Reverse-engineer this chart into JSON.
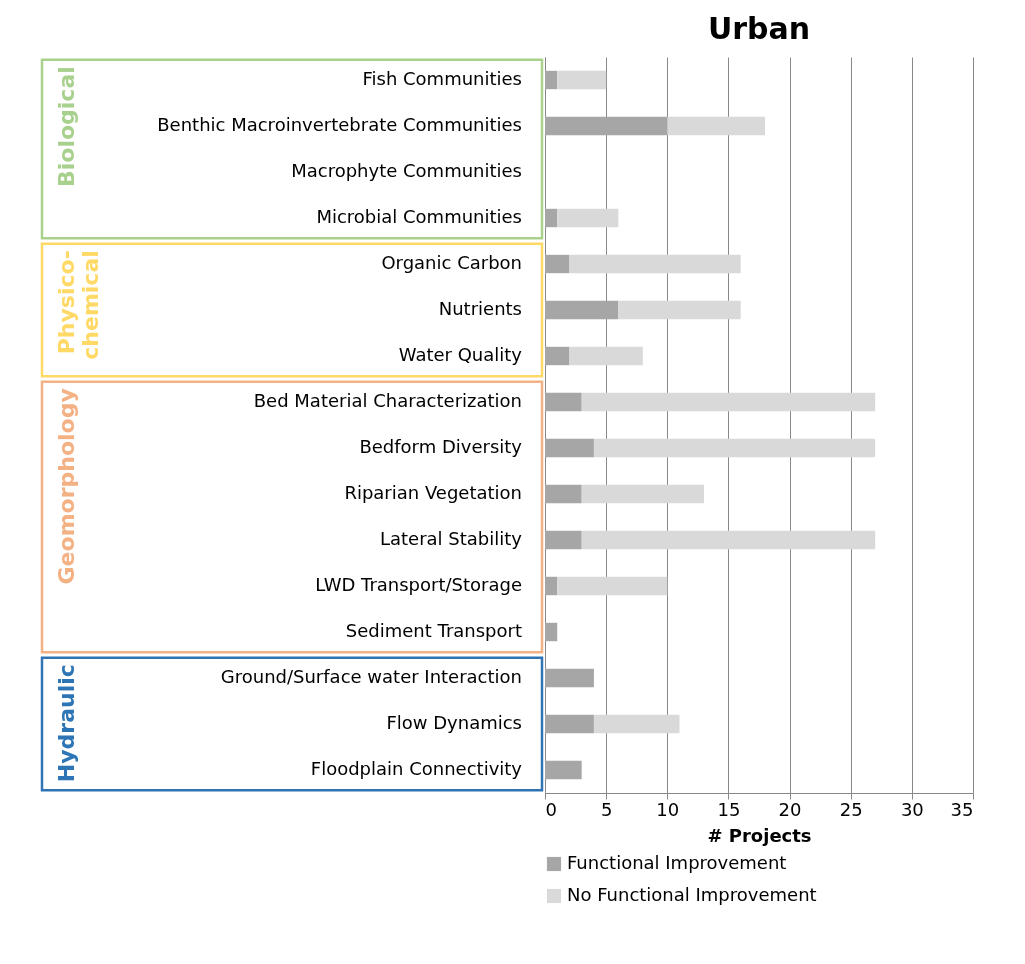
{
  "chart_data": {
    "type": "bar",
    "orientation": "horizontal",
    "stacked": true,
    "title": "Urban",
    "xlabel": "# Projects",
    "categories": [
      "Fish Communities",
      "Benthic Macroinvertebrate Communities",
      "Macrophyte Communities",
      "Microbial Communities",
      "Organic Carbon",
      "Nutrients",
      "Water Quality",
      "Bed Material Characterization",
      "Bedform Diversity",
      "Riparian Vegetation",
      "Lateral Stability",
      "LWD Transport/Storage",
      "Sediment Transport",
      "Ground/Surface water Interaction",
      "Flow Dynamics",
      "Floodplain Connectivity"
    ],
    "series": [
      {
        "name": "Functional Improvement",
        "color": "#a6a6a6",
        "values": [
          1,
          10,
          0,
          1,
          2,
          6,
          2,
          3,
          4,
          3,
          3,
          1,
          1,
          4,
          4,
          3
        ]
      },
      {
        "name": "No Functional Improvement",
        "color": "#d9d9d9",
        "values": [
          4,
          8,
          0,
          5,
          14,
          10,
          6,
          24,
          23,
          10,
          24,
          9,
          0,
          0,
          7,
          0
        ]
      }
    ],
    "xlim": [
      0,
      35
    ],
    "xticks": [
      0,
      5,
      10,
      15,
      20,
      25,
      30,
      35
    ],
    "grid": "x",
    "legend": "bottom left",
    "annotations": [
      "Biological",
      "Physico-chemical",
      "Geomorphology",
      "Hydraulic"
    ]
  }
}
